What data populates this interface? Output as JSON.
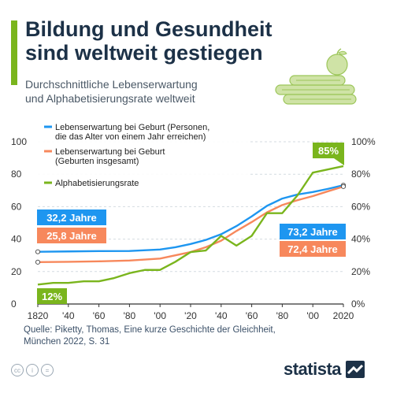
{
  "header": {
    "title_line1": "Bildung und Gesundheit",
    "title_line2": "sind weltweit gestiegen",
    "subtitle_line1": "Durchschnittliche Lebenserwartung",
    "subtitle_line2": "und Alphabetisierungsrate weltweit"
  },
  "colors": {
    "accent": "#7ab51d",
    "life_expectancy": "#1e96f0",
    "life_expectancy_total": "#f7885c",
    "literacy": "#7ab51d",
    "title": "#1c3147",
    "grid": "#d4dbe1"
  },
  "chart_data": {
    "type": "line",
    "title": "",
    "xlabel": "",
    "ylabel": "",
    "ylim": [
      0,
      100
    ],
    "y2lim": [
      0,
      100
    ],
    "x_ticks": [
      "1820",
      "'40",
      "'60",
      "'80",
      "'00",
      "'20",
      "'40",
      "'60",
      "'80",
      "'00",
      "2020"
    ],
    "left_ticks": [
      "0",
      "20",
      "40",
      "60",
      "80",
      "100"
    ],
    "right_ticks": [
      "0%",
      "20%",
      "40%",
      "60%",
      "80%",
      "100%"
    ],
    "grid": true,
    "legend_position": "top-left",
    "series": [
      {
        "name_line1": "Lebenserwartung bei Geburt (Personen,",
        "name_line2": "die das Alter von einem Jahr erreichen)",
        "color_key": "life_expectancy",
        "axis": "left",
        "points": [
          [
            1820,
            32.2
          ],
          [
            1840,
            32.4
          ],
          [
            1860,
            32.6
          ],
          [
            1880,
            32.7
          ],
          [
            1900,
            33.6
          ],
          [
            1910,
            35
          ],
          [
            1920,
            37
          ],
          [
            1930,
            39.5
          ],
          [
            1940,
            43
          ],
          [
            1950,
            48
          ],
          [
            1960,
            54
          ],
          [
            1970,
            60.5
          ],
          [
            1980,
            65
          ],
          [
            1990,
            67.5
          ],
          [
            2000,
            69
          ],
          [
            2010,
            71
          ],
          [
            2020,
            73.2
          ]
        ]
      },
      {
        "name_line1": "Lebenserwartung bei Geburt",
        "name_line2": "(Geburten insgesamt)",
        "color_key": "life_expectancy_total",
        "axis": "left",
        "points": [
          [
            1820,
            25.8
          ],
          [
            1840,
            26
          ],
          [
            1860,
            26.3
          ],
          [
            1880,
            26.8
          ],
          [
            1900,
            28
          ],
          [
            1910,
            30
          ],
          [
            1920,
            32
          ],
          [
            1930,
            35
          ],
          [
            1940,
            39
          ],
          [
            1950,
            45
          ],
          [
            1960,
            50.5
          ],
          [
            1970,
            56.5
          ],
          [
            1980,
            61
          ],
          [
            1990,
            64
          ],
          [
            2000,
            66.5
          ],
          [
            2010,
            69.5
          ],
          [
            2020,
            72.4
          ]
        ]
      },
      {
        "name_line1": "Alphabetisierungsrate",
        "name_line2": "",
        "color_key": "literacy",
        "axis": "right",
        "points": [
          [
            1820,
            12
          ],
          [
            1830,
            13
          ],
          [
            1840,
            13
          ],
          [
            1850,
            14
          ],
          [
            1860,
            14
          ],
          [
            1870,
            16
          ],
          [
            1880,
            19
          ],
          [
            1890,
            21
          ],
          [
            1900,
            21
          ],
          [
            1910,
            26
          ],
          [
            1920,
            32
          ],
          [
            1930,
            33
          ],
          [
            1940,
            42
          ],
          [
            1950,
            36
          ],
          [
            1960,
            42
          ],
          [
            1970,
            56
          ],
          [
            1980,
            56
          ],
          [
            1990,
            67
          ],
          [
            2000,
            81
          ],
          [
            2010,
            83
          ],
          [
            2020,
            85
          ]
        ]
      }
    ],
    "annotations": {
      "life_start": "32,2 Jahre",
      "total_start": "25,8 Jahre",
      "literacy_start": "12%",
      "life_end": "73,2 Jahre",
      "total_end": "72,4 Jahre",
      "literacy_end": "85%"
    }
  },
  "source": {
    "line1": "Quelle: Piketty, Thomas, Eine kurze Geschichte der Gleichheit,",
    "line2": "München 2022, S. 31"
  },
  "footer": {
    "brand": "statista",
    "license_icons": [
      "cc-icon",
      "person-icon",
      "equals-icon"
    ]
  }
}
